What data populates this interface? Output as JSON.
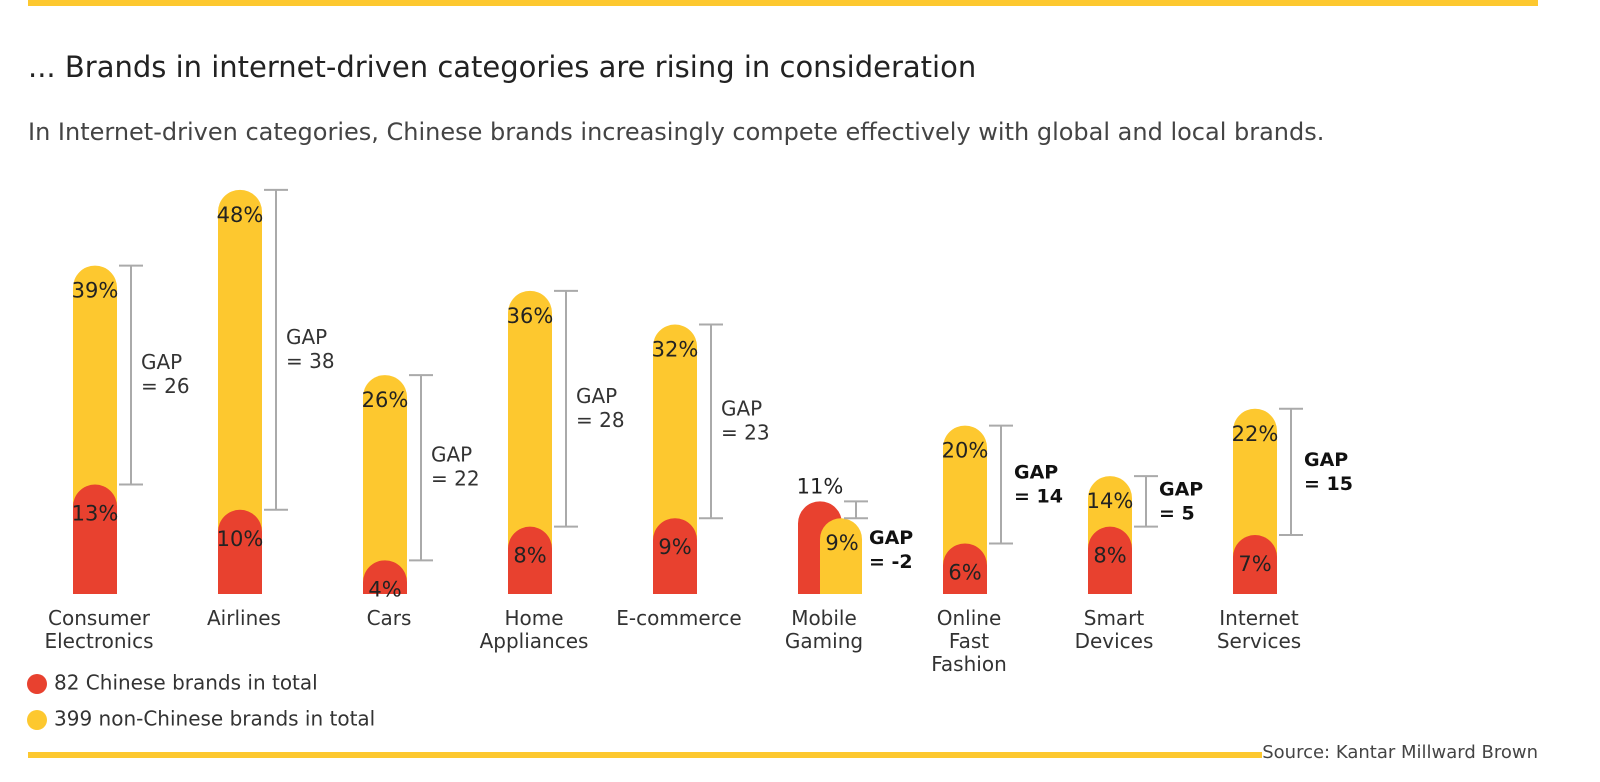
{
  "chart_data": {
    "type": "overlap_bar",
    "title": "... Brands in internet-driven categories are rising in consideration",
    "subtitle": "In Internet-driven categories, Chinese brands increasingly compete effectively with global and local brands.",
    "categories": [
      "Consumer Electronics",
      "Airlines",
      "Cars",
      "Home Appliances",
      "E-commerce",
      "Mobile Gaming",
      "Online Fast Fashion",
      "Smart Devices",
      "Internet Services"
    ],
    "series": [
      {
        "name": "82 Chinese brands in total",
        "color": "#e8412f",
        "values": [
          13,
          10,
          4,
          8,
          9,
          11,
          6,
          8,
          7
        ],
        "value_labels": [
          "13%",
          "10%",
          "4%",
          "8%",
          "9%",
          "11%",
          "6%",
          "8%",
          "7%"
        ]
      },
      {
        "name": "399 non-Chinese brands in total",
        "color": "#fdc82f",
        "values": [
          39,
          48,
          26,
          36,
          32,
          9,
          20,
          14,
          22
        ],
        "value_labels": [
          "39%",
          "48%",
          "26%",
          "36%",
          "32%",
          "9%",
          "20%",
          "14%",
          "22%"
        ]
      }
    ],
    "gaps": [
      26,
      38,
      22,
      28,
      23,
      -2,
      14,
      5,
      15
    ],
    "gap_labels": [
      "GAP = 26",
      "GAP = 38",
      "GAP = 22",
      "GAP = 28",
      "GAP = 23",
      "GAP = -2",
      "GAP = 14",
      "GAP = 5",
      "GAP = 15"
    ],
    "source": "Source: Kantar Millward Brown"
  }
}
